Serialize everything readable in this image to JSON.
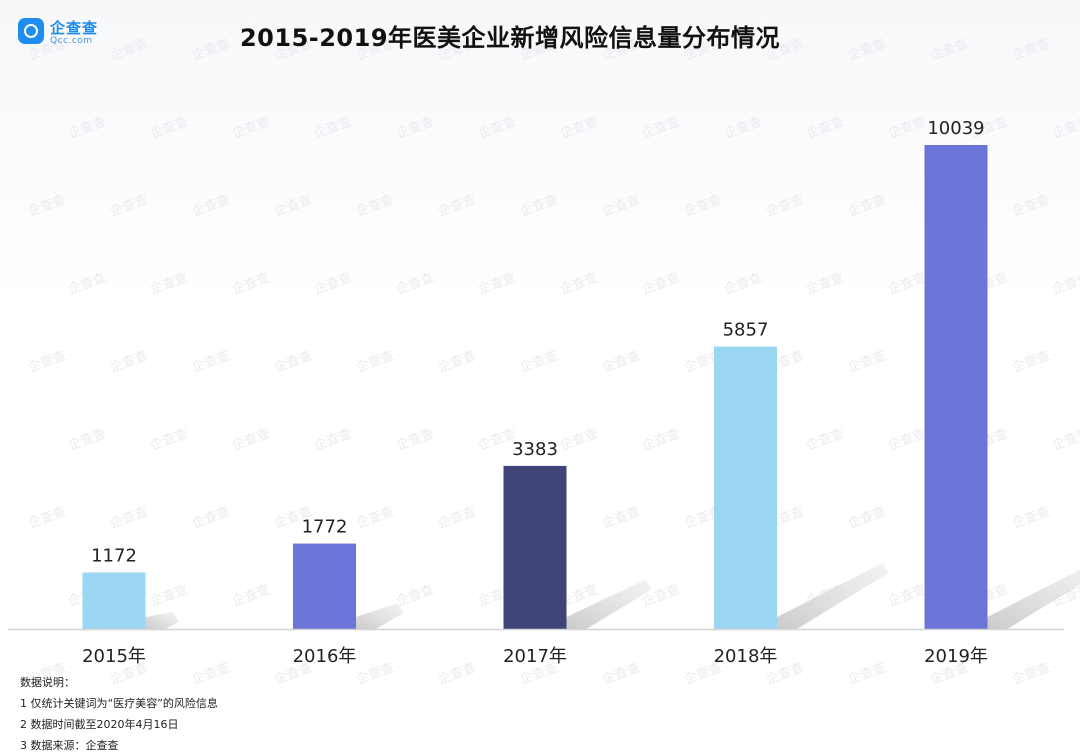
{
  "brand": {
    "name": "企查查",
    "domain": "Qcc.com",
    "watermark_text": "企查查"
  },
  "chart_data": {
    "type": "bar",
    "title": "2015-2019年医美企业新增风险信息量分布情况",
    "categories": [
      "2015年",
      "2016年",
      "2017年",
      "2018年",
      "2019年"
    ],
    "values": [
      1172,
      1772,
      3383,
      5857,
      10039
    ],
    "bar_colors": [
      "#9bd6f2",
      "#6b75d8",
      "#3f4579",
      "#9bd6f2",
      "#6b75d8"
    ],
    "ylim": [
      0,
      10039
    ],
    "xlabel": "",
    "ylabel": "",
    "grid": false,
    "legend": "none",
    "data_labels": true
  },
  "notes": {
    "heading": "数据说明：",
    "items": [
      "1 仅统计关键词为“医疗美容”的风险信息",
      "2 数据时间截至2020年4月16日",
      "3 数据来源：企查查"
    ]
  }
}
